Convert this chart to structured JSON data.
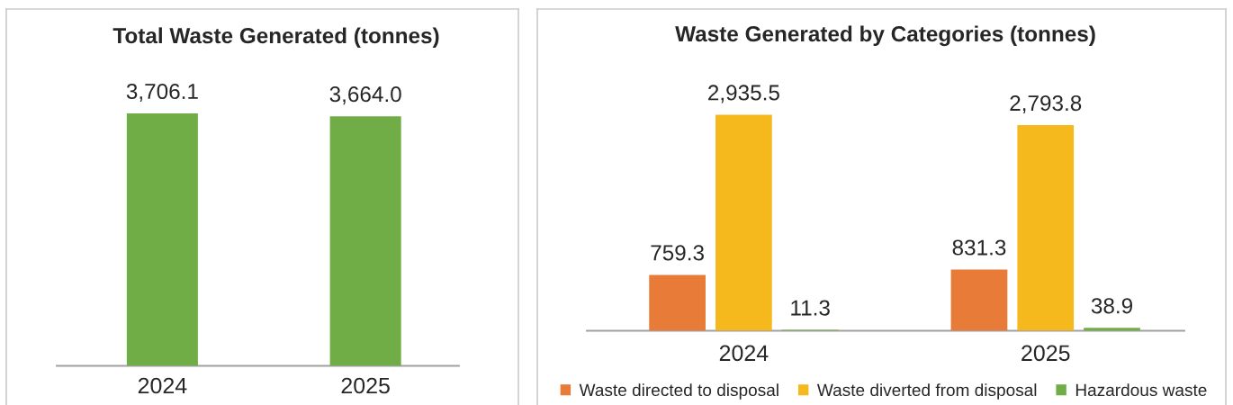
{
  "chart_data": [
    {
      "type": "bar",
      "title": "Total Waste Generated (tonnes)",
      "categories": [
        "2024",
        "2025"
      ],
      "values": [
        3706.1,
        3664.0
      ],
      "color": "#70ad47",
      "value_labels": [
        "3,706.1",
        "3,664.0"
      ],
      "tick_labels": "x"
    },
    {
      "type": "bar",
      "title": "Waste Generated by Categories (tonnes)",
      "categories": [
        "2024",
        "2025"
      ],
      "series": [
        {
          "name": "Waste directed to disposal",
          "color": "#e87b37",
          "values": [
            759.3,
            831.3
          ],
          "value_labels": [
            "759.3",
            "831.3"
          ]
        },
        {
          "name": "Waste diverted from disposal",
          "color": "#f5b91d",
          "values": [
            2935.5,
            2793.8
          ],
          "value_labels": [
            "2,935.5",
            "2,793.8"
          ]
        },
        {
          "name": "Hazardous waste",
          "color": "#70ad47",
          "values": [
            11.3,
            38.9
          ],
          "value_labels": [
            "11.3",
            "38.9"
          ]
        }
      ],
      "legend": "bottom",
      "tick_labels": "x"
    }
  ]
}
